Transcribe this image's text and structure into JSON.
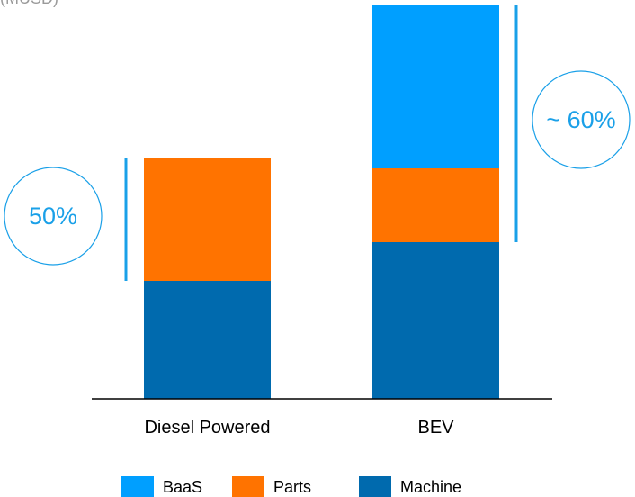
{
  "chart_data": {
    "type": "bar",
    "stacked": true,
    "ylabel": "(MUSD)",
    "categories": [
      "Diesel Powered",
      "BEV"
    ],
    "series": [
      {
        "name": "Machine",
        "values": [
          131,
          174
        ],
        "color": "#006AAE"
      },
      {
        "name": "Parts",
        "values": [
          137,
          82
        ],
        "color": "#FF7300"
      },
      {
        "name": "BaaS",
        "values": [
          0,
          181
        ],
        "color": "#009FFF"
      }
    ],
    "ylim": [
      0,
      437
    ],
    "grid": false,
    "legend": {
      "placement": "bottom"
    },
    "annotations": [
      {
        "text": "50%",
        "category": "Diesel Powered",
        "range": [
          131,
          268
        ]
      },
      {
        "text": "~ 60%",
        "category": "BEV",
        "range": [
          174,
          437
        ]
      }
    ],
    "annotation_color": "#1AA0E8"
  }
}
